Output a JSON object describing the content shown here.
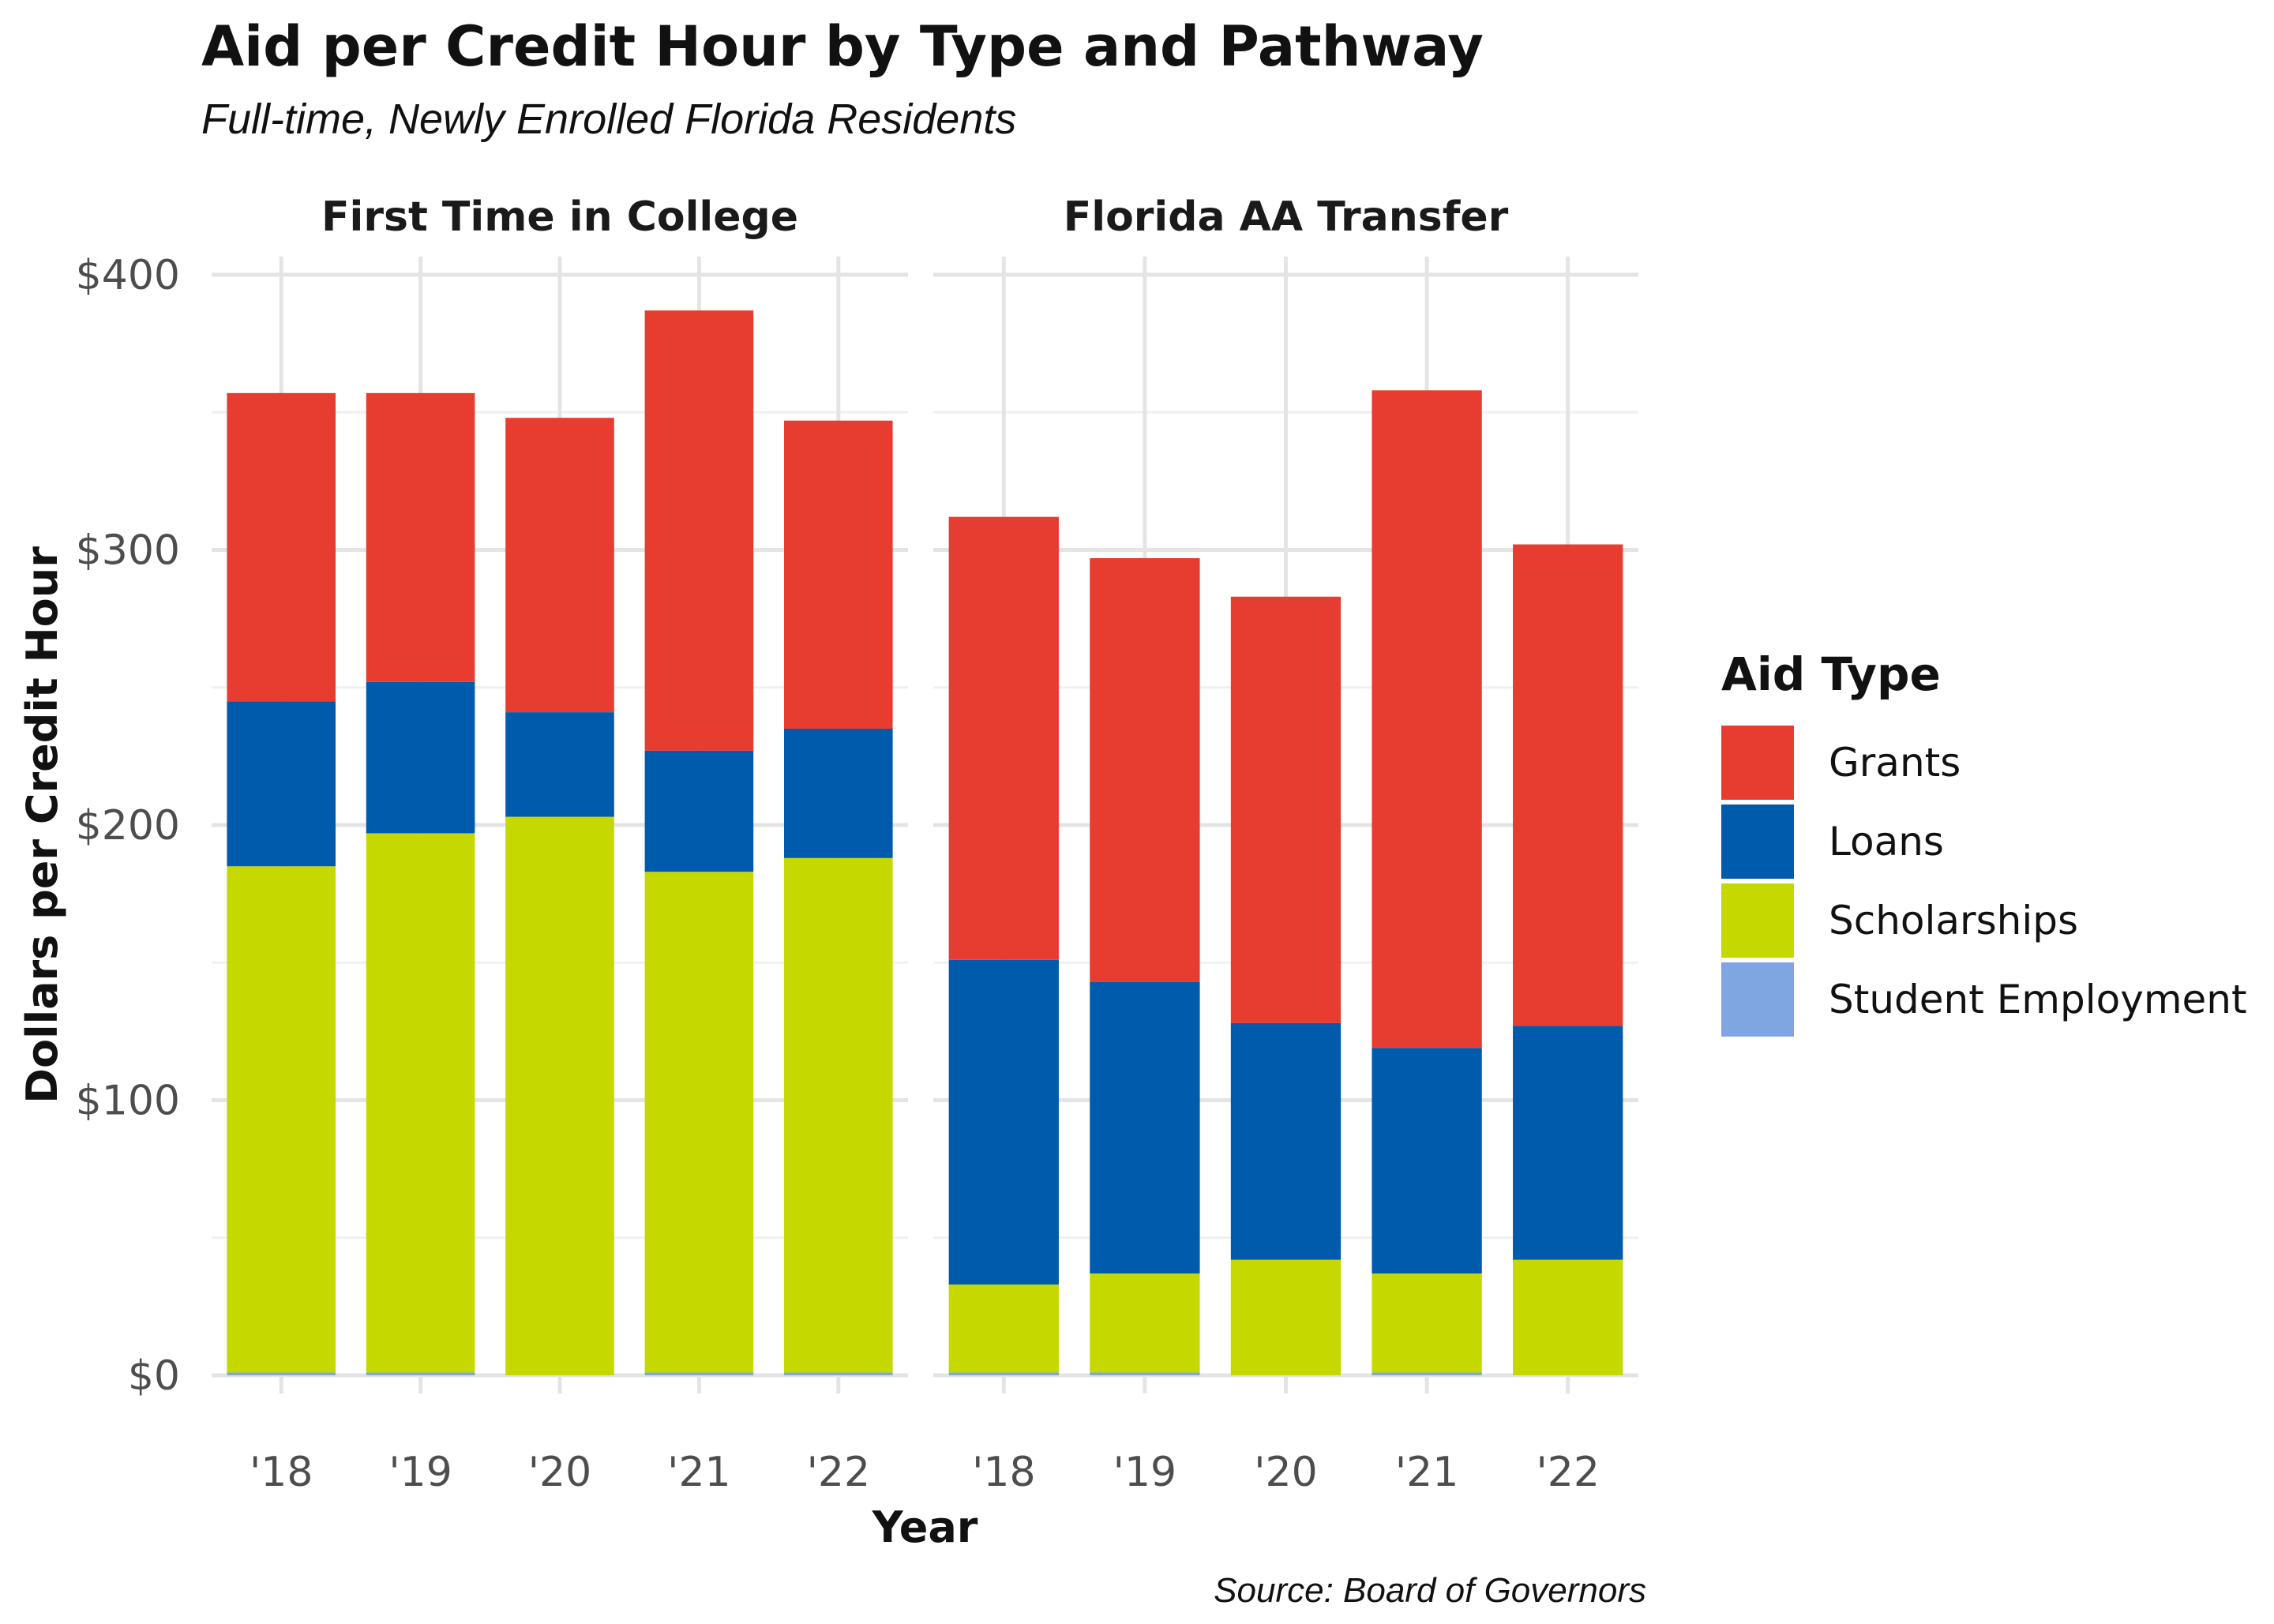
{
  "chart_data": {
    "type": "bar",
    "stacked": true,
    "title": "Aid per Credit Hour by Type and Pathway",
    "subtitle": "Full-time, Newly Enrolled Florida Residents",
    "xlabel": "Year",
    "ylabel": "Dollars per Credit Hour",
    "caption": "Source: Board of Governors",
    "ylim": [
      0,
      400
    ],
    "y_ticks": [
      "$0",
      "$100",
      "$200",
      "$300",
      "$400"
    ],
    "y_tick_values": [
      0,
      100,
      200,
      300,
      400
    ],
    "categories": [
      "'18",
      "'19",
      "'20",
      "'21",
      "'22"
    ],
    "legend": {
      "title": "Aid Type",
      "position": "right",
      "entries": [
        {
          "label": "Grants",
          "color": "#E63D30"
        },
        {
          "label": "Loans",
          "color": "#005BAC"
        },
        {
          "label": "Scholarships",
          "color": "#C5D900"
        },
        {
          "label": "Student Employment",
          "color": "#7FA6E0"
        }
      ]
    },
    "grid": true,
    "panels": [
      {
        "title": "First Time in College",
        "series": [
          {
            "name": "Student Employment",
            "values": [
              1,
              1,
              0,
              1,
              1
            ]
          },
          {
            "name": "Scholarships",
            "values": [
              184,
              196,
              203,
              182,
              187
            ]
          },
          {
            "name": "Loans",
            "values": [
              60,
              55,
              38,
              44,
              47
            ]
          },
          {
            "name": "Grants",
            "values": [
              112,
              105,
              107,
              160,
              112
            ]
          }
        ]
      },
      {
        "title": "Florida AA Transfer",
        "series": [
          {
            "name": "Student Employment",
            "values": [
              1,
              1,
              0,
              1,
              0
            ]
          },
          {
            "name": "Scholarships",
            "values": [
              32,
              36,
              42,
              36,
              42
            ]
          },
          {
            "name": "Loans",
            "values": [
              118,
              106,
              86,
              82,
              85
            ]
          },
          {
            "name": "Grants",
            "values": [
              161,
              154,
              155,
              239,
              175
            ]
          }
        ]
      }
    ]
  }
}
